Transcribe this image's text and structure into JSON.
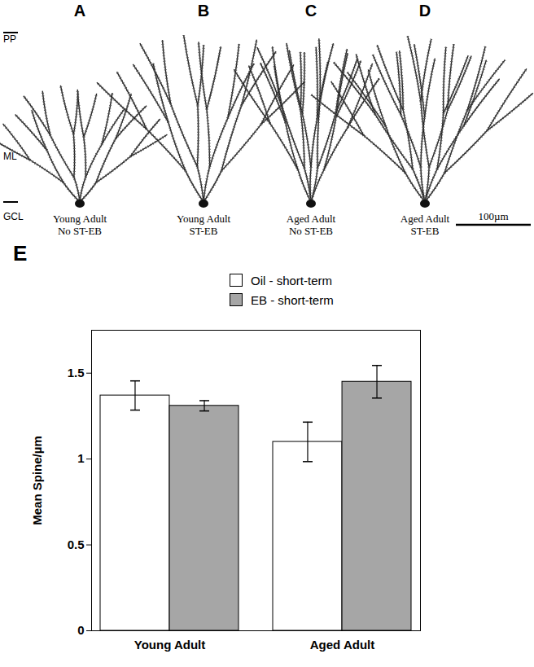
{
  "layers": [
    "PP",
    "ML",
    "GCL"
  ],
  "panels": [
    {
      "label": "A",
      "caption": [
        "Young Adult",
        "No ST-EB"
      ]
    },
    {
      "label": "B",
      "caption": [
        "Young Adult",
        "ST-EB"
      ]
    },
    {
      "label": "C",
      "caption": [
        "Aged Adult",
        "No ST-EB"
      ]
    },
    {
      "label": "D",
      "caption": [
        "Aged Adult",
        "ST-EB"
      ]
    }
  ],
  "scale_bar": "100µm",
  "chart_data": {
    "type": "bar",
    "panel_label": "E",
    "categories": [
      "Young Adult",
      "Aged Adult"
    ],
    "series": [
      {
        "name": "Oil - short-term",
        "color": "#ffffff",
        "values": [
          1.37,
          1.1
        ],
        "errors": [
          0.085,
          0.115
        ]
      },
      {
        "name": "EB - short-term",
        "color": "#a6a6a6",
        "values": [
          1.31,
          1.45
        ],
        "errors": [
          0.03,
          0.095
        ]
      }
    ],
    "ylabel": "Mean Spine/µm",
    "ylim": [
      0,
      1.75
    ],
    "yticks": [
      0,
      0.5,
      1,
      1.5
    ],
    "legend": "top"
  }
}
